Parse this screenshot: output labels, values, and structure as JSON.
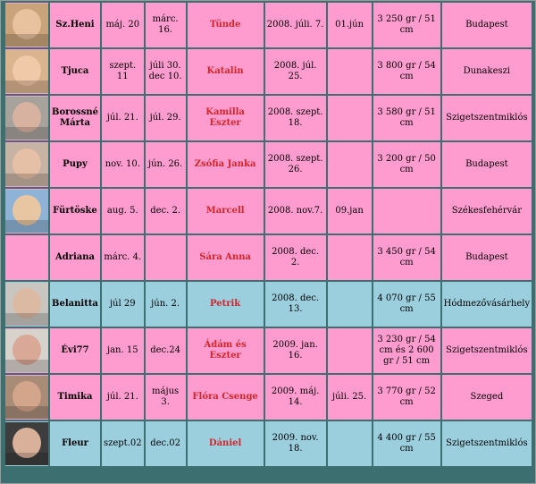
{
  "rows": [
    {
      "nick": "Sz.Heni",
      "date1": "máj. 20",
      "date2": "márc. 16.",
      "baby": "Tünde",
      "birth": "2008. júli. 7.",
      "extra": "01.jún",
      "weight": "3 250 gr / 51 cm",
      "city": "Budapest",
      "color": "pink",
      "photo": {
        "bg": "#c9a37b",
        "face": "#e8c29e",
        "icon": "baby-photo-icon"
      }
    },
    {
      "nick": "Tjuca",
      "date1": "szept. 11",
      "date2": "júli 30.\ndec 10.",
      "baby": "Katalin",
      "birth": "2008. júl. 25.",
      "extra": "",
      "weight": "3 800 gr / 54 cm",
      "city": "Dunakeszi",
      "color": "pink",
      "photo": {
        "bg": "#d9b48f",
        "face": "#efc9a8",
        "icon": "baby-photo-icon"
      }
    },
    {
      "nick": "Borossné Márta",
      "date1": "júl. 21.",
      "date2": "júl. 29.",
      "baby": "Kamilla Eszter",
      "birth": "2008. szept. 18.",
      "extra": "",
      "weight": "3 580 gr / 51 cm",
      "city": "Szigetszentmiklós",
      "color": "pink",
      "photo": {
        "bg": "#a8a29c",
        "face": "#d8b2a0",
        "icon": "baby-photo-icon"
      }
    },
    {
      "nick": "Pupy",
      "date1": "nov. 10.",
      "date2": "jún. 26.",
      "baby": "Zsófia Janka",
      "birth": "2008. szept. 26.",
      "extra": "",
      "weight": "3 200 gr / 50 cm",
      "city": "Budapest",
      "color": "pink",
      "photo": {
        "bg": "#c7b3a3",
        "face": "#e6c0a6",
        "icon": "baby-photo-icon"
      }
    },
    {
      "nick": "Fürtöske",
      "date1": "aug. 5.",
      "date2": "dec. 2.",
      "baby": "Marcell",
      "birth": "2008. nov.7.",
      "extra": "09.jan",
      "weight": "",
      "city": "Székesfehérvár",
      "color": "pink",
      "photo": {
        "bg": "#8fb3d6",
        "face": "#e8c6a1",
        "icon": "baby-photo-icon"
      }
    },
    {
      "nick": "Adriana",
      "date1": "márc. 4.",
      "date2": "",
      "baby": "Sára Anna",
      "birth": "2008. dec. 2.",
      "extra": "",
      "weight": "3 450 gr / 54 cm",
      "city": "Budapest",
      "color": "pink",
      "photo": null
    },
    {
      "nick": "Belanitta",
      "date1": "júl 29",
      "date2": "jún. 2.",
      "baby": "Petrik",
      "birth": "2008. dec. 13.",
      "extra": "",
      "weight": "4 070 gr / 55 cm",
      "city": "Hódmezővásárhely",
      "color": "blue",
      "photo": {
        "bg": "#c9c6c2",
        "face": "#dbb9a3",
        "icon": "baby-photo-icon"
      }
    },
    {
      "nick": "Évi77",
      "date1": "jan. 15",
      "date2": "dec.24",
      "baby": "Ádám és Eszter",
      "birth": "2009. jan. 16.",
      "extra": "",
      "weight": "3 230 gr / 54 cm és 2 600 gr / 51 cm",
      "city": "Szigetszentmiklós",
      "color": "pink",
      "photo": {
        "bg": "#d8d2cc",
        "face": "#d9a896",
        "icon": "twins-photo-icon"
      }
    },
    {
      "nick": "Timika",
      "date1": "júl. 21.",
      "date2": "május 3.",
      "baby": "Flóra Csenge",
      "birth": "2009. máj. 14.",
      "extra": "júli. 25.",
      "weight": "3 770 gr / 52 cm",
      "city": "Szeged",
      "color": "pink",
      "photo": {
        "bg": "#a98c78",
        "face": "#d3a58a",
        "icon": "baby-photo-icon"
      }
    },
    {
      "nick": "Fleur",
      "date1": "szept.02",
      "date2": "dec.02",
      "baby": "Dániel",
      "birth": "2009. nov. 18.",
      "extra": "",
      "weight": "4 400 gr / 55 cm",
      "city": "Szigetszentmiklós",
      "color": "blue",
      "photo": {
        "bg": "#3d3d3d",
        "face": "#d9b09a",
        "icon": "baby-photo-icon"
      }
    }
  ]
}
